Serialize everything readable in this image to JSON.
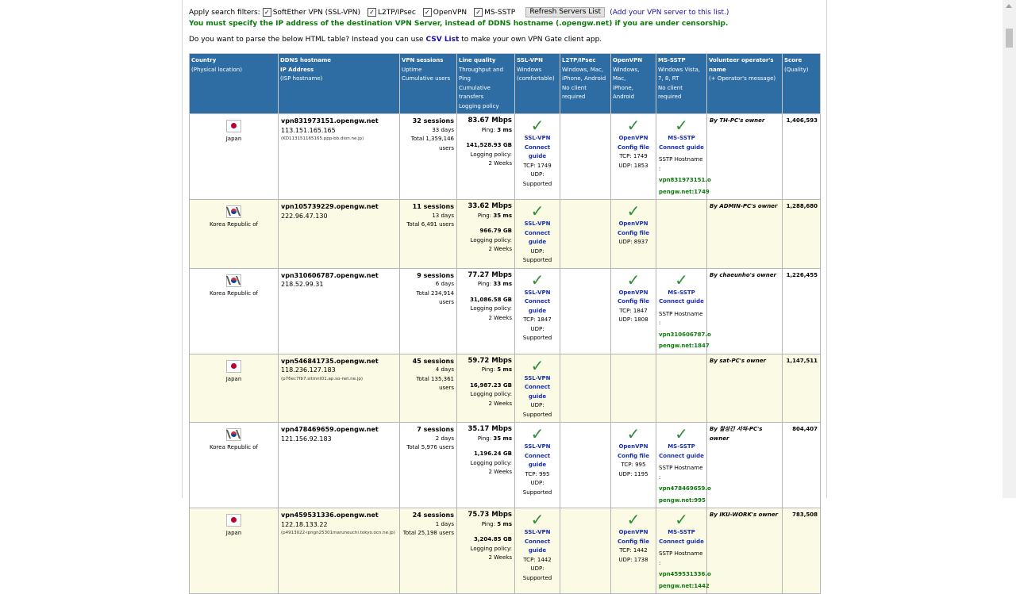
{
  "filters": {
    "label": "Apply search filters:",
    "options": [
      {
        "label": "SoftEther VPN (SSL-VPN)",
        "checked": true
      },
      {
        "label": "L2TP/IPsec",
        "checked": true
      },
      {
        "label": "OpenVPN",
        "checked": true
      },
      {
        "label": "MS-SSTP",
        "checked": true
      }
    ],
    "refresh_button": "Refresh Servers List",
    "add_link": "(Add your VPN server to this list.)"
  },
  "warning": "You must specify the IP address of the destination VPN Server, instead of DDNS hostname (.opengw.net) if you are under censorship.",
  "csv_line": {
    "before": "Do you want to parse the below HTML table? Instead you can use",
    "link": "CSV List",
    "after": "to make your own VPN Gate client app."
  },
  "colors": {
    "header_bg": "#2e6da4",
    "check": "#2e8b3a",
    "warning": "#0b7a0b",
    "link": "#1a2fb0",
    "row_alt": "#fbfbe5"
  },
  "headers": {
    "country": {
      "title": "Country",
      "sub": "(Physical location)"
    },
    "ddns": {
      "title": "DDNS hostname",
      "title2": "IP Address",
      "sub": "(ISP hostname)"
    },
    "sessions": {
      "title": "VPN sessions",
      "sub1": "Uptime",
      "sub2": "Cumulative users"
    },
    "quality": {
      "title": "Line quality",
      "sub1": "Throughput and Ping",
      "sub2": "Cumulative transfers",
      "sub3": "Logging policy"
    },
    "ssl": {
      "title": "SSL-VPN",
      "sub1": "Windows",
      "sub2": "(comfortable)"
    },
    "l2tp": {
      "title": "L2TP/IPsec",
      "sub1": "Windows, Mac,",
      "sub2": "iPhone, Android",
      "sub3": "No client required"
    },
    "openvpn": {
      "title": "OpenVPN",
      "sub1": "Windows, Mac,",
      "sub2": "iPhone, Android"
    },
    "sstp": {
      "title": "MS-SSTP",
      "sub1": "Windows Vista,",
      "sub2": "7, 8, RT",
      "sub3": "No client required"
    },
    "operator": {
      "title": "Volunteer operator's name",
      "sub": "(+ Operator's message)"
    },
    "score": {
      "title": "Score",
      "sub": "(Quality)"
    }
  },
  "labels": {
    "ping": "Ping:",
    "logging": "Logging policy:",
    "ssl_vpn": "SSL-VPN",
    "connect_guide": "Connect guide",
    "openvpn": "OpenVPN",
    "config_file": "Config file",
    "ms_sstp": "MS-SSTP",
    "sstp_hostname": "SSTP Hostname :",
    "check_mark": "✓"
  },
  "servers": [
    {
      "country": "Japan",
      "flag": "jp-flag",
      "host": "vpn831973151.opengw.net",
      "ip": "113.151.165.165",
      "isp": "(KD113151165165.ppp-bb.dion.ne.jp)",
      "sessions": "32 sessions",
      "uptime": "33 days",
      "users": "Total 1,359,146 users",
      "speed": "83.67 Mbps",
      "ping": "3 ms",
      "transfer": "141,528.93 GB",
      "logging": "2 Weeks",
      "ssl_tcp": "TCP: 1749",
      "ssl_udp": "UDP: Supported",
      "openvpn": true,
      "ovpn_tcp": "TCP: 1749",
      "ovpn_udp": "UDP: 1853",
      "sstp": true,
      "sstp_host1": "vpn831973151.o",
      "sstp_host2": "pengw.net:1749",
      "owner": "By TH-PC's owner",
      "score": "1,406,593"
    },
    {
      "country": "Korea Republic of",
      "flag": "kr-flag",
      "host": "vpn105739229.opengw.net",
      "ip": "222.96.47.130",
      "isp": "",
      "sessions": "11 sessions",
      "uptime": "13 days",
      "users": "Total 6,491 users",
      "speed": "33.62 Mbps",
      "ping": "35 ms",
      "transfer": "966.79 GB",
      "logging": "2 Weeks",
      "ssl_tcp": "",
      "ssl_udp": "UDP: Supported",
      "openvpn": true,
      "ovpn_tcp": "",
      "ovpn_udp": "UDP: 8937",
      "sstp": false,
      "sstp_host1": "",
      "sstp_host2": "",
      "owner": "By ADMIN-PC's owner",
      "score": "1,288,680"
    },
    {
      "country": "Korea Republic of",
      "flag": "kr-flag",
      "host": "vpn310606787.opengw.net",
      "ip": "218.52.99.31",
      "isp": "",
      "sessions": "9 sessions",
      "uptime": "6 days",
      "users": "Total 234,914 users",
      "speed": "77.27 Mbps",
      "ping": "33 ms",
      "transfer": "31,086.58 GB",
      "logging": "2 Weeks",
      "ssl_tcp": "TCP: 1847",
      "ssl_udp": "UDP: Supported",
      "openvpn": true,
      "ovpn_tcp": "TCP: 1847",
      "ovpn_udp": "UDP: 1808",
      "sstp": true,
      "sstp_host1": "vpn310606787.o",
      "sstp_host2": "pengw.net:1847",
      "owner": "By chaeunho's owner",
      "score": "1,226,455"
    },
    {
      "country": "Japan",
      "flag": "jp-flag",
      "host": "vpn546841735.opengw.net",
      "ip": "118.236.127.183",
      "isp": "(p76ec7fb7.sitmnt01.ap.so-net.ne.jp)",
      "sessions": "45 sessions",
      "uptime": "4 days",
      "users": "Total 135,361 users",
      "speed": "59.72 Mbps",
      "ping": "5 ms",
      "transfer": "16,987.23 GB",
      "logging": "2 Weeks",
      "ssl_tcp": "",
      "ssl_udp": "UDP: Supported",
      "openvpn": false,
      "ovpn_tcp": "",
      "ovpn_udp": "",
      "sstp": false,
      "sstp_host1": "",
      "sstp_host2": "",
      "owner": "By sat-PC's owner",
      "score": "1,147,511"
    },
    {
      "country": "Korea Republic of",
      "flag": "kr-flag",
      "host": "vpn478469659.opengw.net",
      "ip": "121.156.92.183",
      "isp": "",
      "sessions": "7 sessions",
      "uptime": "2 days",
      "users": "Total 5,976 users",
      "speed": "35.17 Mbps",
      "ping": "35 ms",
      "transfer": "1,196.24 GB",
      "logging": "2 Weeks",
      "ssl_tcp": "TCP: 995",
      "ssl_udp": "UDP: Supported",
      "openvpn": true,
      "ovpn_tcp": "TCP: 995",
      "ovpn_udp": "UDP: 1195",
      "sstp": true,
      "sstp_host1": "vpn478469659.o",
      "sstp_host2": "pengw.net:995",
      "owner": "By 찰성긴 서씩-PC's owner",
      "score": "804,407"
    },
    {
      "country": "Japan",
      "flag": "jp-flag",
      "host": "vpn459531336.opengw.net",
      "ip": "122.18.133.22",
      "isp": "(p4913022-ipngn25301marunouchi.tokyo.ocn.ne.jp)",
      "sessions": "24 sessions",
      "uptime": "1 days",
      "users": "Total 25,198 users",
      "speed": "75.73 Mbps",
      "ping": "5 ms",
      "transfer": "3,204.85 GB",
      "logging": "2 Weeks",
      "ssl_tcp": "TCP: 1442",
      "ssl_udp": "UDP: Supported",
      "openvpn": true,
      "ovpn_tcp": "TCP: 1442",
      "ovpn_udp": "UDP: 1738",
      "sstp": true,
      "sstp_host1": "vpn459531336.o",
      "sstp_host2": "pengw.net:1442",
      "owner": "By IKU-WORK's owner",
      "score": "783,508"
    }
  ]
}
